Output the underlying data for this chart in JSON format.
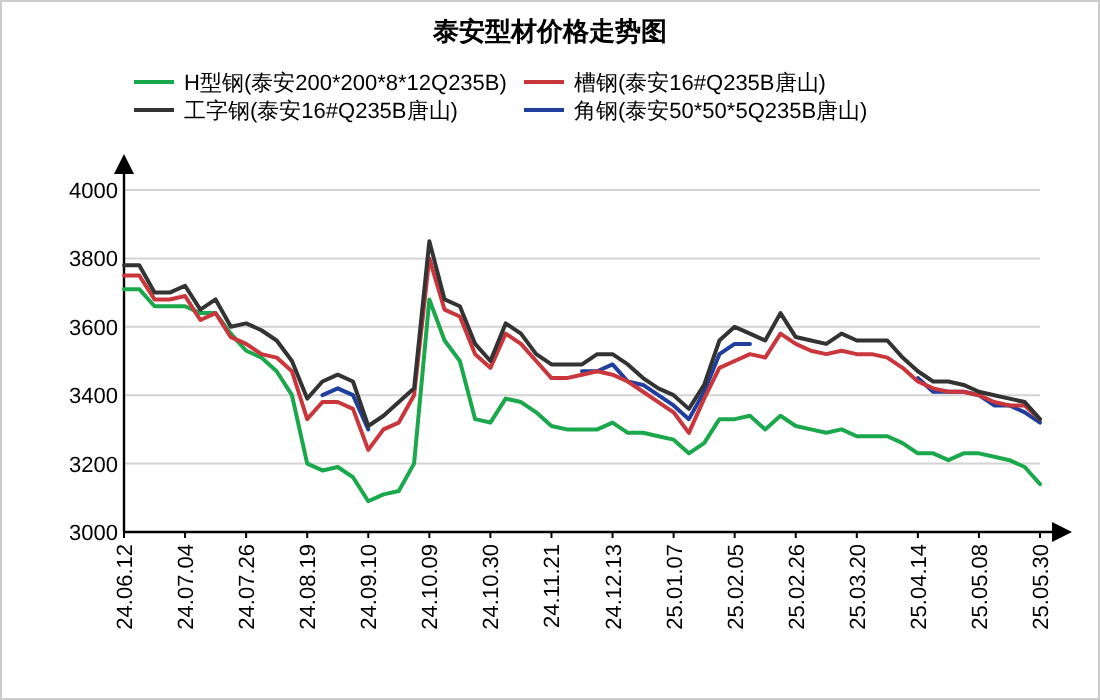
{
  "chart_data": {
    "type": "line",
    "title": "泰安型材价格走势图",
    "categories": [
      "24.06.12",
      null,
      null,
      null,
      "24.07.04",
      null,
      null,
      null,
      "24.07.26",
      null,
      null,
      null,
      "24.08.19",
      null,
      null,
      null,
      "24.09.10",
      null,
      null,
      null,
      "24.10.09",
      null,
      null,
      null,
      "24.10.30",
      null,
      null,
      null,
      "24.11.21",
      null,
      null,
      null,
      "24.12.13",
      null,
      null,
      null,
      "25.01.07",
      null,
      null,
      null,
      "25.02.05",
      null,
      null,
      null,
      "25.02.26",
      null,
      null,
      null,
      "25.03.20",
      null,
      null,
      null,
      "25.04.14",
      null,
      null,
      null,
      "25.05.08",
      null,
      null,
      null,
      "25.05.30"
    ],
    "series": [
      {
        "name": "H型钢(泰安200*200*8*12Q235B)",
        "color": "#1ba84c",
        "values": [
          3710,
          3710,
          3660,
          3660,
          3660,
          3640,
          3640,
          3580,
          3530,
          3510,
          3470,
          3400,
          3200,
          3180,
          3190,
          3160,
          3090,
          3110,
          3120,
          3200,
          3680,
          3560,
          3500,
          3330,
          3320,
          3390,
          3380,
          3350,
          3310,
          3300,
          3300,
          3300,
          3320,
          3290,
          3290,
          3280,
          3270,
          3230,
          3260,
          3330,
          3330,
          3340,
          3300,
          3340,
          3310,
          3300,
          3290,
          3300,
          3280,
          3280,
          3280,
          3260,
          3230,
          3230,
          3210,
          3230,
          3230,
          3220,
          3210,
          3190,
          3140
        ]
      },
      {
        "name": "槽钢(泰安16#Q235B唐山)",
        "color": "#c9363b",
        "values": [
          3750,
          3750,
          3680,
          3680,
          3690,
          3620,
          3640,
          3570,
          3550,
          3520,
          3510,
          3470,
          3330,
          3380,
          3380,
          3360,
          3240,
          3300,
          3320,
          3400,
          3800,
          3650,
          3630,
          3520,
          3480,
          3580,
          3550,
          3500,
          3450,
          3450,
          3460,
          3470,
          3460,
          3440,
          3410,
          3380,
          3350,
          3290,
          3390,
          3480,
          3500,
          3520,
          3510,
          3580,
          3550,
          3530,
          3520,
          3530,
          3520,
          3520,
          3510,
          3480,
          3440,
          3420,
          3410,
          3410,
          3400,
          3380,
          3370,
          3370,
          3330
        ]
      },
      {
        "name": "工字钢(泰安16#Q235B唐山)",
        "color": "#333333",
        "values": [
          3780,
          3780,
          3700,
          3700,
          3720,
          3650,
          3680,
          3600,
          3610,
          3590,
          3560,
          3500,
          3390,
          3440,
          3460,
          3440,
          3310,
          3340,
          3380,
          3420,
          3850,
          3680,
          3660,
          3550,
          3500,
          3610,
          3580,
          3520,
          3490,
          3490,
          3490,
          3520,
          3520,
          3490,
          3450,
          3420,
          3400,
          3360,
          3430,
          3560,
          3600,
          3580,
          3560,
          3640,
          3570,
          3560,
          3550,
          3580,
          3560,
          3560,
          3560,
          3510,
          3470,
          3440,
          3440,
          3430,
          3410,
          3400,
          3390,
          3380,
          3330
        ]
      },
      {
        "name": "角钢(泰安50*50*5Q235B唐山)",
        "color": "#1f3e9e",
        "values": [
          null,
          null,
          null,
          null,
          null,
          null,
          null,
          null,
          null,
          null,
          null,
          null,
          null,
          3400,
          3420,
          3400,
          3300,
          null,
          null,
          null,
          null,
          null,
          null,
          null,
          null,
          null,
          null,
          null,
          null,
          null,
          3470,
          3470,
          3490,
          3440,
          3430,
          3400,
          3370,
          3330,
          3410,
          3520,
          3550,
          3550,
          null,
          null,
          null,
          null,
          null,
          null,
          null,
          null,
          null,
          null,
          3450,
          3410,
          3410,
          3410,
          3400,
          3370,
          3370,
          3350,
          3320
        ]
      }
    ],
    "ylim": [
      3000,
      4000
    ],
    "yticks": [
      3000,
      3200,
      3400,
      3600,
      3800,
      4000
    ],
    "grid": "y",
    "legend": "top"
  }
}
